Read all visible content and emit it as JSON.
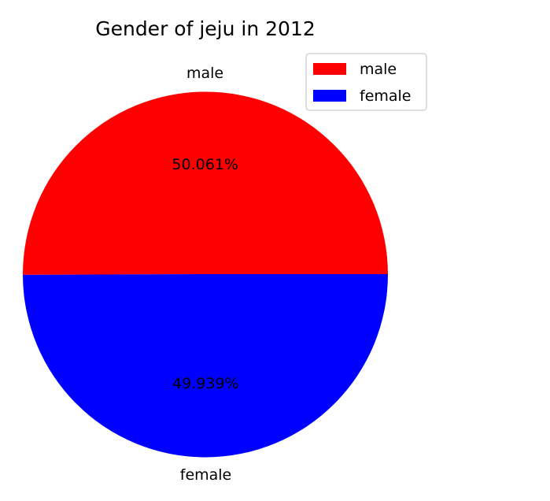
{
  "chart_data": {
    "type": "pie",
    "title": "Gender of jeju in 2012",
    "labels": [
      "male",
      "female"
    ],
    "values": [
      50.061,
      49.939
    ],
    "percent_labels": [
      "50.061%",
      "49.939%"
    ],
    "colors": [
      "#ff0000",
      "#0000ff"
    ],
    "start_angle_deg": 0,
    "direction": "counterclockwise",
    "legend": {
      "placement": "top-right",
      "entries": [
        "male",
        "female"
      ]
    }
  }
}
